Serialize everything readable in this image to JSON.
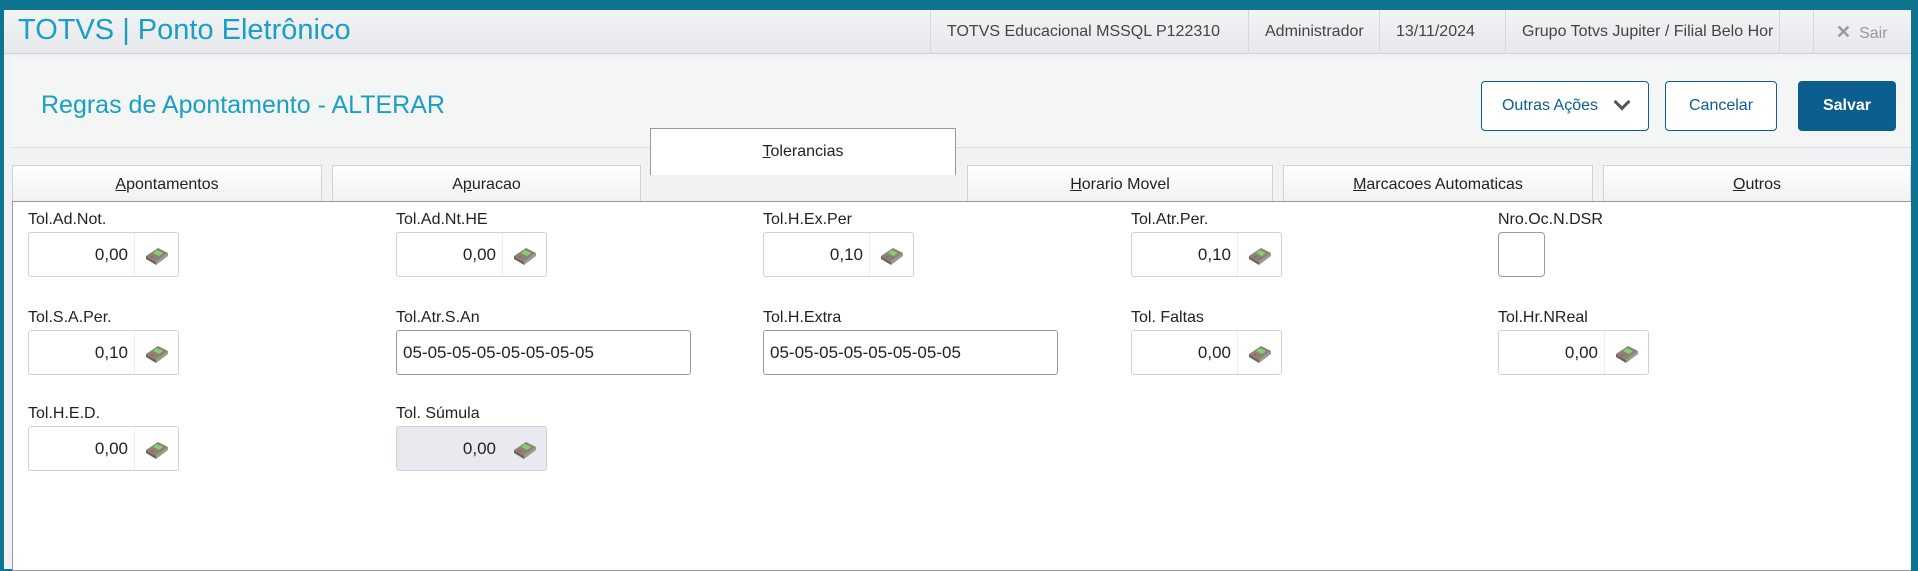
{
  "app": {
    "title": "TOTVS | Ponto Eletrônico",
    "environment": "TOTVS Educacional MSSQL P122310",
    "user": "Administrador",
    "date": "13/11/2024",
    "company": "Grupo Totvs Jupiter / Filial Belo Hor",
    "exit_label": "Sair"
  },
  "page": {
    "title": "Regras de Apontamento - ALTERAR",
    "actions": {
      "more": "Outras Ações",
      "cancel": "Cancelar",
      "save": "Salvar"
    }
  },
  "tabs": [
    {
      "label": "Apontamentos",
      "accel": "A",
      "rest": "pontamentos"
    },
    {
      "label": "Apuracao",
      "pre": "A",
      "accel": "p",
      "rest": "uracao"
    },
    {
      "label": "Tolerancias",
      "accel": "T",
      "rest": "olerancias"
    },
    {
      "label": "Horario Movel",
      "pre": "",
      "accel": "H",
      "rest": "orario Movel"
    },
    {
      "label": "Marcacoes Automaticas",
      "accel": "M",
      "rest": "arcacoes Automaticas"
    },
    {
      "label": "Outros",
      "accel": "O",
      "rest": "utros"
    }
  ],
  "active_tab": "Tolerancias",
  "fields": {
    "tol_ad_not": {
      "label": "Tol.Ad.Not.",
      "value": "0,00"
    },
    "tol_ad_nt_he": {
      "label": "Tol.Ad.Nt.HE",
      "value": "0,00"
    },
    "tol_h_ex_per": {
      "label": "Tol.H.Ex.Per",
      "value": "0,10"
    },
    "tol_atr_per": {
      "label": "Tol.Atr.Per.",
      "value": "0,10"
    },
    "nro_oc_n_dsr": {
      "label": "Nro.Oc.N.DSR",
      "value": ""
    },
    "tol_s_a_per": {
      "label": "Tol.S.A.Per.",
      "value": "0,10"
    },
    "tol_atr_s_an": {
      "label": "Tol.Atr.S.An",
      "value": "05-05-05-05-05-05-05-05"
    },
    "tol_h_extra": {
      "label": "Tol.H.Extra",
      "value": "05-05-05-05-05-05-05-05"
    },
    "tol_faltas": {
      "label": "Tol. Faltas",
      "value": "0,00"
    },
    "tol_hr_nreal": {
      "label": "Tol.Hr.NReal",
      "value": "0,00"
    },
    "tol_h_e_d": {
      "label": "Tol.H.E.D.",
      "value": "0,00"
    },
    "tol_sumula": {
      "label": "Tol. Súmula",
      "value": "0,00",
      "readonly": true
    }
  },
  "colors": {
    "brand": "#1a9fc4",
    "primary": "#0c5e8f",
    "frame": "#0e7490"
  },
  "icons": {
    "calc": "calculator-icon",
    "close": "close-icon",
    "chevron": "chevron-down-icon"
  }
}
